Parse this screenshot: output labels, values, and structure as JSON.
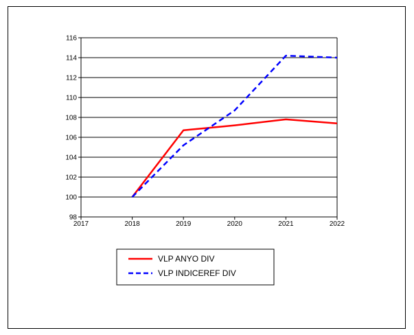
{
  "chart_data": {
    "type": "line",
    "x": [
      2018,
      2019,
      2020,
      2021,
      2022
    ],
    "xlim": [
      2017,
      2022
    ],
    "xticks": [
      "2017",
      "2018",
      "2019",
      "2020",
      "2021",
      "2022"
    ],
    "ylim": [
      98,
      116
    ],
    "yticks": [
      "98",
      "100",
      "102",
      "104",
      "106",
      "108",
      "110",
      "112",
      "114",
      "116"
    ],
    "grid": "horizontal",
    "legend_position": "bottom-left",
    "series": [
      {
        "name": "VLP ANYO DIV",
        "values": [
          100.0,
          106.7,
          107.2,
          107.8,
          107.4
        ],
        "color": "#ff0000",
        "style": "solid"
      },
      {
        "name": "VLP INDICEREF DIV",
        "values": [
          100.0,
          105.2,
          108.7,
          114.2,
          114.0
        ],
        "color": "#0000ff",
        "style": "dashed"
      }
    ]
  }
}
